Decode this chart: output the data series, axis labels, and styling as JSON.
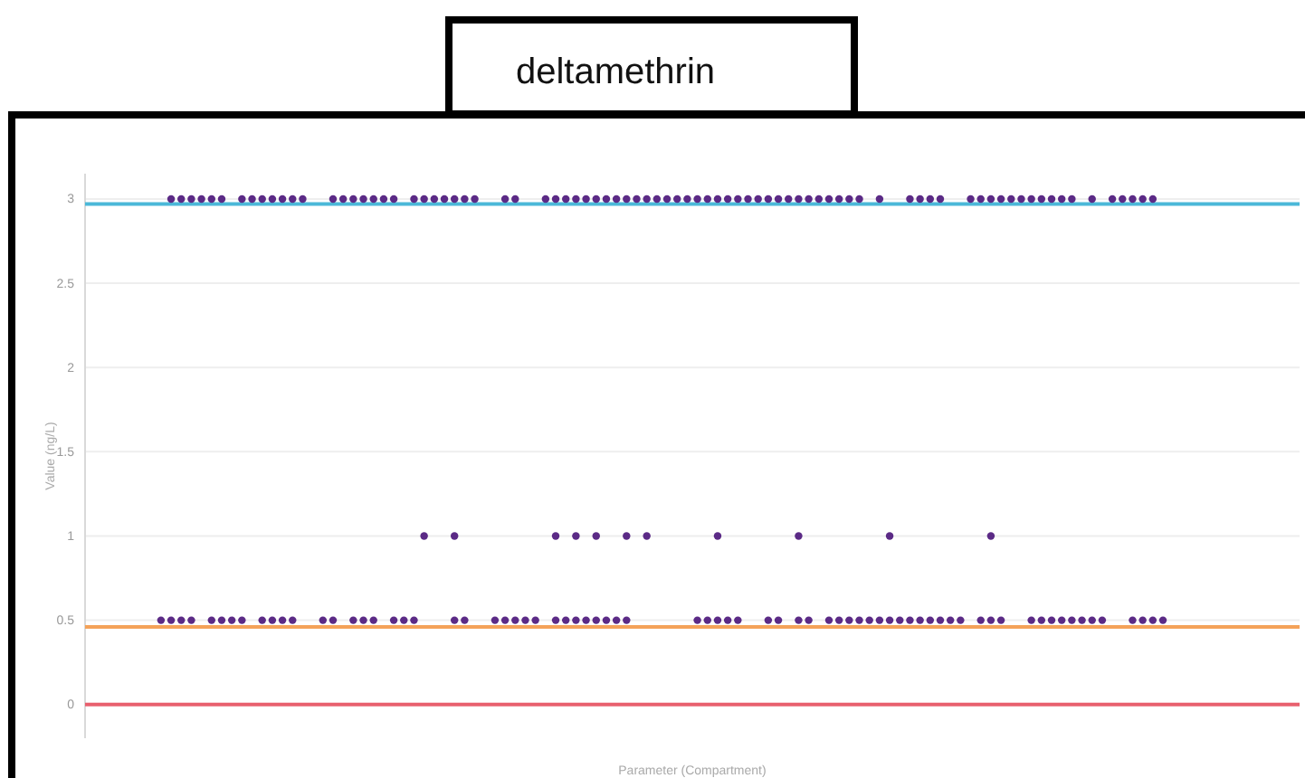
{
  "chart_data": {
    "type": "scatter",
    "title": "deltamethrin",
    "xlabel": "Parameter (Compartment)",
    "ylabel": "Value (ng/L)",
    "categories": [
      null,
      null,
      null,
      null,
      null,
      null,
      null,
      null,
      null,
      null,
      null,
      null,
      null,
      null,
      null,
      null,
      null,
      null,
      null,
      null,
      null,
      null,
      null,
      null,
      null,
      null,
      null,
      null,
      null,
      null,
      null,
      null,
      null,
      null,
      null,
      null,
      null,
      null,
      null,
      null,
      null,
      null,
      null,
      null,
      null,
      null,
      null,
      null,
      null,
      null,
      null,
      null,
      null,
      null,
      null,
      null,
      null,
      null,
      null,
      null,
      null,
      null,
      null,
      null,
      null,
      null,
      null,
      null,
      null,
      null,
      null,
      null,
      null,
      null,
      null,
      null,
      null,
      null,
      null,
      null,
      null,
      null,
      null,
      null,
      null,
      null,
      null,
      null,
      null,
      null,
      null,
      null,
      null,
      null,
      null,
      null,
      null,
      null,
      null,
      null,
      null,
      null,
      null,
      null,
      null,
      null,
      null,
      null,
      null,
      null,
      null,
      null,
      null,
      null,
      null,
      null,
      null,
      null,
      null,
      null
    ],
    "series": [
      {
        "color": "#5b2a86",
        "values": [
          null,
          null,
          null,
          null,
          null,
          null,
          null,
          null,
          3,
          3,
          3,
          3,
          3,
          3,
          null,
          3,
          3,
          3,
          3,
          3,
          3,
          3,
          null,
          null,
          3,
          3,
          3,
          3,
          3,
          3,
          3,
          null,
          3,
          3,
          3,
          3,
          3,
          3,
          3,
          null,
          null,
          3,
          3,
          null,
          null,
          3,
          3,
          3,
          3,
          3,
          3,
          3,
          3,
          3,
          3,
          3,
          3,
          3,
          3,
          3,
          3,
          3,
          3,
          3,
          3,
          3,
          3,
          3,
          3,
          3,
          3,
          3,
          3,
          3,
          3,
          3,
          3,
          null,
          3,
          null,
          null,
          3,
          3,
          3,
          3,
          null,
          null,
          3,
          3,
          3,
          3,
          3,
          3,
          3,
          3,
          3,
          3,
          3,
          null,
          3,
          null,
          3,
          3,
          3,
          3,
          3,
          null,
          null,
          null,
          null,
          null,
          null,
          null,
          null,
          null,
          null,
          null,
          null,
          null,
          null
        ]
      },
      {
        "color": "#5b2a86",
        "values": [
          null,
          null,
          null,
          null,
          null,
          null,
          null,
          null,
          null,
          null,
          null,
          null,
          null,
          null,
          null,
          null,
          null,
          null,
          null,
          null,
          null,
          null,
          null,
          null,
          null,
          null,
          null,
          null,
          null,
          null,
          null,
          null,
          null,
          1,
          null,
          null,
          1,
          null,
          null,
          null,
          null,
          null,
          null,
          null,
          null,
          null,
          1,
          null,
          1,
          null,
          1,
          null,
          null,
          1,
          null,
          1,
          null,
          null,
          null,
          null,
          null,
          null,
          1,
          null,
          null,
          null,
          null,
          null,
          null,
          null,
          1,
          null,
          null,
          null,
          null,
          null,
          null,
          null,
          null,
          1,
          null,
          null,
          null,
          null,
          null,
          null,
          null,
          null,
          null,
          1,
          null,
          null,
          null,
          null,
          null,
          null,
          null,
          null,
          null,
          null,
          null,
          null,
          null,
          null,
          null,
          null,
          null,
          null,
          null,
          null,
          null,
          null,
          null,
          null,
          null,
          null,
          null,
          null,
          null,
          null
        ]
      },
      {
        "color": "#5b2a86",
        "values": [
          null,
          null,
          null,
          null,
          null,
          null,
          null,
          0.5,
          0.5,
          0.5,
          0.5,
          null,
          0.5,
          0.5,
          0.5,
          0.5,
          null,
          0.5,
          0.5,
          0.5,
          0.5,
          null,
          null,
          0.5,
          0.5,
          null,
          0.5,
          0.5,
          0.5,
          null,
          0.5,
          0.5,
          0.5,
          null,
          null,
          null,
          0.5,
          0.5,
          null,
          null,
          0.5,
          0.5,
          0.5,
          0.5,
          0.5,
          null,
          0.5,
          0.5,
          0.5,
          0.5,
          0.5,
          0.5,
          0.5,
          0.5,
          null,
          null,
          null,
          null,
          null,
          null,
          0.5,
          0.5,
          0.5,
          0.5,
          0.5,
          null,
          null,
          0.5,
          0.5,
          null,
          0.5,
          0.5,
          null,
          0.5,
          0.5,
          0.5,
          0.5,
          0.5,
          0.5,
          0.5,
          0.5,
          0.5,
          0.5,
          0.5,
          0.5,
          0.5,
          0.5,
          null,
          0.5,
          0.5,
          0.5,
          null,
          null,
          0.5,
          0.5,
          0.5,
          0.5,
          0.5,
          0.5,
          0.5,
          0.5,
          null,
          null,
          0.5,
          0.5,
          0.5,
          0.5,
          null,
          null,
          null,
          null,
          null,
          null,
          null,
          null,
          null,
          null,
          null,
          null,
          null
        ]
      }
    ],
    "ylim": [
      -0.2,
      3.15
    ],
    "yticks": [
      0,
      0.5,
      1,
      1.5,
      2,
      2.5,
      3
    ],
    "grid": "y",
    "marker": "circle",
    "ref_lines": [
      {
        "axis": "y",
        "value": 2.97,
        "color": "#4bb8d8"
      },
      {
        "axis": "y",
        "value": 0.46,
        "color": "#f4a259"
      },
      {
        "axis": "y",
        "value": 0,
        "color": "#e8606e"
      }
    ]
  }
}
